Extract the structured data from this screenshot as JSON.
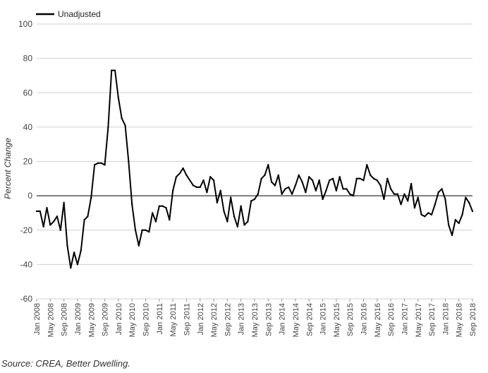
{
  "chart_data": {
    "type": "line",
    "title": "",
    "xlabel": "",
    "ylabel": "Percent Change",
    "ylim": [
      -60,
      100
    ],
    "yticks": [
      -60,
      -40,
      -20,
      0,
      20,
      40,
      60,
      80,
      100
    ],
    "grid": true,
    "legend_position": "top-left",
    "x_tick_labels": [
      "Jan 2008",
      "May 2008",
      "Sep 2008",
      "Jan 2009",
      "May 2009",
      "Sep 2009",
      "Jan 2010",
      "May 2010",
      "Sep 2010",
      "Jan 2011",
      "May 2011",
      "Sep 2011",
      "Jan 2012",
      "May 2012",
      "Sep 2012",
      "Jan 2013",
      "May 2013",
      "Sep 2013",
      "Jan 2014",
      "May 2014",
      "Sep 2014",
      "Jan 2015",
      "May 2015",
      "Sep 2015",
      "Jan 2016",
      "May 2016",
      "Sep 2016",
      "Jan 2017",
      "May 2017",
      "Sep 2017",
      "Jan 2018",
      "May 2018",
      "Sep 2018"
    ],
    "series": [
      {
        "name": "Unadjusted",
        "color": "#000000",
        "values": [
          -9,
          -9,
          -18,
          -7,
          -17,
          -15,
          -12,
          -20,
          -4,
          -29,
          -42,
          -33,
          -40,
          -32,
          -14,
          -12,
          -1,
          18,
          19,
          19,
          18,
          40,
          73,
          73,
          57,
          45,
          41,
          20,
          -5,
          -20,
          -29,
          -20,
          -20,
          -21,
          -10,
          -15,
          -6,
          -6,
          -7,
          -14,
          3,
          11,
          13,
          16,
          12,
          9,
          6,
          5,
          5,
          9,
          2,
          11,
          9,
          -4,
          3,
          -9,
          -15,
          -1,
          -12,
          -18,
          -6,
          -17,
          -15,
          -3,
          -2,
          1,
          10,
          12,
          18,
          8,
          6,
          12,
          1,
          4,
          5,
          1,
          6,
          12,
          8,
          2,
          11,
          9,
          3,
          9,
          -2,
          3,
          9,
          10,
          3,
          11,
          4,
          4,
          1,
          0,
          10,
          10,
          9,
          18,
          12,
          10,
          9,
          6,
          -2,
          10,
          4,
          1,
          1,
          -5,
          1,
          -3,
          7,
          -7,
          -1,
          -11,
          -12,
          -10,
          -11,
          -5,
          2,
          4,
          -2,
          -17,
          -23,
          -14,
          -16,
          -11,
          -1,
          -4,
          -9
        ]
      }
    ]
  },
  "source_text": "Source: CREA, Better Dwelling."
}
